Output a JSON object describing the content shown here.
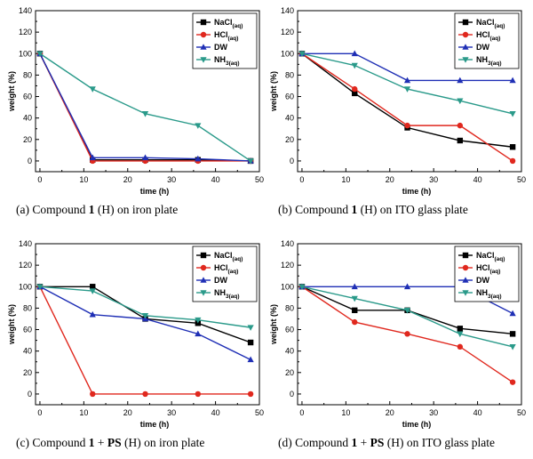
{
  "chart_data": [
    {
      "type": "line",
      "id": "a",
      "caption": {
        "prefix": "(a) Compound ",
        "bold1": "1",
        "middle": " (H) on iron plate",
        "bold2": "",
        "suffix": ""
      },
      "xlabel": "time (h)",
      "ylabel": "weight (%)",
      "xlim": [
        -1,
        50
      ],
      "ylim": [
        -10,
        140
      ],
      "xticks": [
        0,
        10,
        20,
        30,
        40,
        50
      ],
      "yticks": [
        0,
        20,
        40,
        60,
        80,
        100,
        120,
        140
      ],
      "legend_position": "top-right",
      "x": [
        0,
        12,
        24,
        36,
        48
      ],
      "series": [
        {
          "name": "NaCl",
          "sub": "(aq)",
          "color": "#000000",
          "marker": "square",
          "values": [
            100,
            1,
            1,
            1,
            0
          ]
        },
        {
          "name": "HCl",
          "sub": "(aq)",
          "color": "#e0281e",
          "marker": "circle",
          "values": [
            100,
            0,
            0,
            0,
            0
          ]
        },
        {
          "name": "DW",
          "sub": "",
          "color": "#1f2fb5",
          "marker": "triangle-up",
          "values": [
            100,
            3,
            3,
            2,
            0
          ]
        },
        {
          "name": "NH",
          "sub": "3(aq)",
          "color": "#2a9a8a",
          "marker": "triangle-down",
          "values": [
            100,
            67,
            44,
            33,
            0
          ]
        }
      ]
    },
    {
      "type": "line",
      "id": "b",
      "caption": {
        "prefix": "(b) Compound ",
        "bold1": "1",
        "middle": " (H) on ITO glass plate",
        "bold2": "",
        "suffix": ""
      },
      "xlabel": "time (h)",
      "ylabel": "weight (%)",
      "xlim": [
        -1,
        50
      ],
      "ylim": [
        -10,
        140
      ],
      "xticks": [
        0,
        10,
        20,
        30,
        40,
        50
      ],
      "yticks": [
        0,
        20,
        40,
        60,
        80,
        100,
        120,
        140
      ],
      "legend_position": "top-right",
      "x": [
        0,
        12,
        24,
        36,
        48
      ],
      "series": [
        {
          "name": "NaCl",
          "sub": "(aq)",
          "color": "#000000",
          "marker": "square",
          "values": [
            100,
            63,
            31,
            19,
            13
          ]
        },
        {
          "name": "HCl",
          "sub": "(aq)",
          "color": "#e0281e",
          "marker": "circle",
          "values": [
            100,
            67,
            33,
            33,
            0
          ]
        },
        {
          "name": "DW",
          "sub": "",
          "color": "#1f2fb5",
          "marker": "triangle-up",
          "values": [
            100,
            100,
            75,
            75,
            75
          ]
        },
        {
          "name": "NH",
          "sub": "3(aq)",
          "color": "#2a9a8a",
          "marker": "triangle-down",
          "values": [
            100,
            89,
            67,
            56,
            44
          ]
        }
      ]
    },
    {
      "type": "line",
      "id": "c",
      "caption": {
        "prefix": "(c) Compound ",
        "bold1": "1",
        "middle": " + ",
        "bold2": "PS",
        "suffix": " (H) on iron plate"
      },
      "xlabel": "time (h)",
      "ylabel": "weight (%)",
      "xlim": [
        -1,
        50
      ],
      "ylim": [
        -10,
        140
      ],
      "xticks": [
        0,
        10,
        20,
        30,
        40,
        50
      ],
      "yticks": [
        0,
        20,
        40,
        60,
        80,
        100,
        120,
        140
      ],
      "legend_position": "top-right",
      "x": [
        0,
        12,
        24,
        36,
        48
      ],
      "series": [
        {
          "name": "NaCl",
          "sub": "(aq)",
          "color": "#000000",
          "marker": "square",
          "values": [
            100,
            100,
            70,
            66,
            48
          ]
        },
        {
          "name": "HCl",
          "sub": "(aq)",
          "color": "#e0281e",
          "marker": "circle",
          "values": [
            100,
            0,
            0,
            0,
            0
          ]
        },
        {
          "name": "DW",
          "sub": "",
          "color": "#1f2fb5",
          "marker": "triangle-up",
          "values": [
            100,
            74,
            70,
            56,
            32
          ]
        },
        {
          "name": "NH",
          "sub": "3(aq)",
          "color": "#2a9a8a",
          "marker": "triangle-down",
          "values": [
            100,
            96,
            73,
            69,
            62
          ]
        }
      ]
    },
    {
      "type": "line",
      "id": "d",
      "caption": {
        "prefix": "(d) Compound ",
        "bold1": "1",
        "middle": " + ",
        "bold2": "PS",
        "suffix": " (H) on ITO glass plate"
      },
      "xlabel": "time (h)",
      "ylabel": "weight (%)",
      "xlim": [
        -1,
        50
      ],
      "ylim": [
        -10,
        140
      ],
      "xticks": [
        0,
        10,
        20,
        30,
        40,
        50
      ],
      "yticks": [
        0,
        20,
        40,
        60,
        80,
        100,
        120,
        140
      ],
      "legend_position": "top-right",
      "x": [
        0,
        12,
        24,
        36,
        48
      ],
      "series": [
        {
          "name": "NaCl",
          "sub": "(aq)",
          "color": "#000000",
          "marker": "square",
          "values": [
            100,
            78,
            78,
            61,
            56
          ]
        },
        {
          "name": "HCl",
          "sub": "(aq)",
          "color": "#e0281e",
          "marker": "circle",
          "values": [
            100,
            67,
            56,
            44,
            11
          ]
        },
        {
          "name": "DW",
          "sub": "",
          "color": "#1f2fb5",
          "marker": "triangle-up",
          "values": [
            100,
            100,
            100,
            100,
            75
          ]
        },
        {
          "name": "NH",
          "sub": "3(aq)",
          "color": "#2a9a8a",
          "marker": "triangle-down",
          "values": [
            100,
            89,
            78,
            56,
            44
          ]
        }
      ]
    }
  ]
}
